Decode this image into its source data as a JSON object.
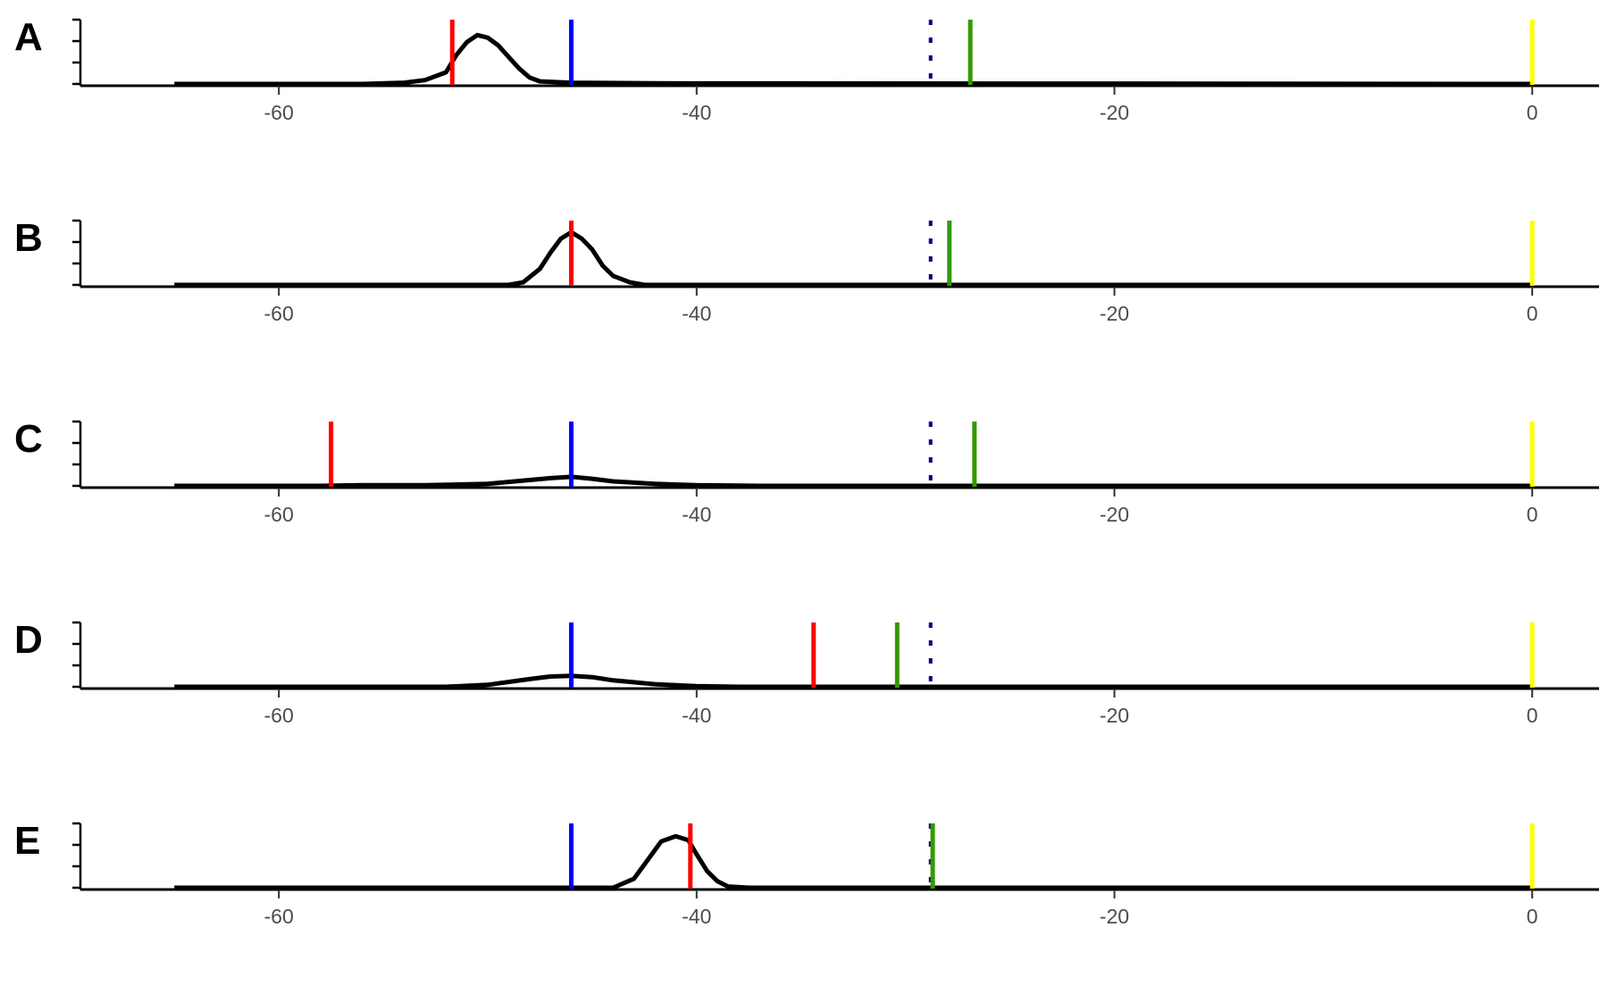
{
  "chart_data": {
    "type": "line",
    "layout": "stacked-panels",
    "x_ticks": [
      -60,
      -40,
      -20,
      0
    ],
    "xlim": [
      -69.5,
      3.2
    ],
    "colors": {
      "density": "#000000",
      "red_line": "#ff0000",
      "blue_line": "#0000ff",
      "green_line": "#339900",
      "yellow_line": "#ffff00",
      "dotted_line": "#000080"
    },
    "panels": [
      {
        "label": "A",
        "markers": {
          "red": -51.7,
          "blue": -46.0,
          "dotted": -28.8,
          "green": -26.9,
          "yellow": 0
        },
        "density": {
          "x": [
            -65,
            -56,
            -54,
            -53,
            -52,
            -51.5,
            -51,
            -50.5,
            -50,
            -49.5,
            -49,
            -48.5,
            -48,
            -47.5,
            -46,
            -42,
            0
          ],
          "y": [
            0,
            0,
            0.02,
            0.06,
            0.18,
            0.45,
            0.65,
            0.76,
            0.72,
            0.6,
            0.42,
            0.24,
            0.1,
            0.04,
            0.02,
            0.01,
            0
          ]
        }
      },
      {
        "label": "B",
        "markers": {
          "red": -46.0,
          "blue": -46.0,
          "dotted": -28.8,
          "green": -27.9,
          "yellow": 0
        },
        "density": {
          "x": [
            -65,
            -49,
            -48.3,
            -47.5,
            -47,
            -46.5,
            -46,
            -45.5,
            -45,
            -44.5,
            -44,
            -43.2,
            -42.5,
            0
          ],
          "y": [
            0,
            0,
            0.04,
            0.25,
            0.5,
            0.72,
            0.82,
            0.72,
            0.55,
            0.3,
            0.14,
            0.04,
            0,
            0
          ]
        }
      },
      {
        "label": "C",
        "markers": {
          "red": -57.5,
          "blue": -46.0,
          "dotted": -28.8,
          "green": -26.7,
          "yellow": 0
        },
        "density": {
          "x": [
            -65,
            -58,
            -56,
            -53,
            -50,
            -48,
            -47,
            -46,
            -45,
            -44,
            -42,
            -40,
            -37,
            0
          ],
          "y": [
            0,
            0,
            0.01,
            0.01,
            0.03,
            0.09,
            0.12,
            0.14,
            0.11,
            0.07,
            0.03,
            0.01,
            0,
            0
          ]
        }
      },
      {
        "label": "D",
        "markers": {
          "red": -34.4,
          "blue": -46.0,
          "dotted": -28.8,
          "green": -30.4,
          "yellow": 0
        },
        "density": {
          "x": [
            -65,
            -52,
            -50,
            -48,
            -47,
            -46,
            -45,
            -44,
            -42,
            -40,
            -38,
            0
          ],
          "y": [
            0,
            0,
            0.03,
            0.12,
            0.16,
            0.17,
            0.15,
            0.1,
            0.04,
            0.01,
            0,
            0
          ]
        }
      },
      {
        "label": "E",
        "markers": {
          "red": -40.3,
          "blue": -46.0,
          "dotted": -28.8,
          "green": -28.7,
          "yellow": 0
        },
        "density": {
          "x": [
            -65,
            -44,
            -43,
            -42.3,
            -41.7,
            -41,
            -40.4,
            -40,
            -39.5,
            -39,
            -38.5,
            -37.5,
            0
          ],
          "y": [
            0,
            0,
            0.14,
            0.45,
            0.72,
            0.8,
            0.74,
            0.52,
            0.26,
            0.1,
            0.02,
            0,
            0
          ]
        }
      }
    ]
  }
}
